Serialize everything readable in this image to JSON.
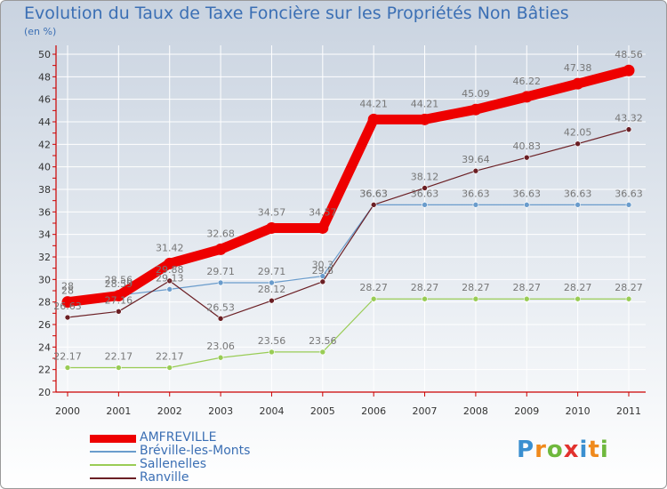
{
  "header": {
    "title": "Evolution du Taux de Taxe Foncière sur les Propriétés Non Bâties",
    "unit": "(en %)"
  },
  "logo": {
    "text": "Proxiti",
    "letters": [
      "P",
      "r",
      "o",
      "x",
      "i",
      "t",
      "i"
    ]
  },
  "colors": {
    "axis": "#cc0000",
    "grid": "#ffffff",
    "label": "#777777",
    "tick_text": "#333333"
  },
  "chart_data": {
    "type": "line",
    "title": "Evolution du Taux de Taxe Foncière sur les Propriétés Non Bâties",
    "ylabel": "(en %)",
    "xlabel": "",
    "x": [
      "2000",
      "2001",
      "2002",
      "2003",
      "2004",
      "2005",
      "2006",
      "2007",
      "2008",
      "2009",
      "2010",
      "2011"
    ],
    "ylim": [
      20,
      50
    ],
    "yticks": [
      20,
      22,
      24,
      26,
      28,
      30,
      32,
      34,
      36,
      38,
      40,
      42,
      44,
      46,
      48,
      50
    ],
    "grid": true,
    "legend": "bottom-left",
    "series": [
      {
        "name": "AMFREVILLE",
        "color": "#ee0000",
        "values": [
          28,
          28.56,
          31.42,
          32.68,
          34.57,
          34.57,
          44.21,
          44.21,
          45.09,
          46.22,
          47.38,
          48.56
        ],
        "labels": [
          "28",
          "28.56",
          "31.42",
          "32.68",
          "34.57",
          "34.57",
          "44.21",
          "44.21",
          "45.09",
          "46.22",
          "47.38",
          "48.56"
        ]
      },
      {
        "name": "Bréville-les-Monts",
        "color": "#6a9ccc",
        "values": [
          28,
          28.59,
          29.13,
          29.71,
          29.71,
          30.3,
          36.63,
          36.63,
          36.63,
          36.63,
          36.63,
          36.63
        ],
        "labels": [
          "28",
          "28.59",
          "29.13",
          "29.71",
          "29.71",
          "30.3",
          "36.63",
          "36.63",
          "36.63",
          "36.63",
          "36.63",
          "36.63"
        ]
      },
      {
        "name": "Sallenelles",
        "color": "#99cc55",
        "values": [
          22.17,
          22.17,
          22.17,
          23.06,
          23.56,
          23.56,
          28.27,
          28.27,
          28.27,
          28.27,
          28.27,
          28.27
        ],
        "labels": [
          "22.17",
          "22.17",
          "22.17",
          "23.06",
          "23.56",
          "23.56",
          "28.27",
          "28.27",
          "28.27",
          "28.27",
          "28.27",
          "28.27"
        ]
      },
      {
        "name": "Ranville",
        "color": "#6b1f24",
        "values": [
          26.63,
          27.16,
          29.88,
          26.53,
          28.12,
          29.8,
          36.63,
          38.12,
          39.64,
          40.83,
          42.05,
          43.32
        ],
        "labels": [
          "26.63",
          "27.16",
          "29.88",
          "26.53",
          "28.12",
          "29.8",
          "36.63",
          "38.12",
          "39.64",
          "40.83",
          "42.05",
          "43.32"
        ]
      }
    ]
  }
}
